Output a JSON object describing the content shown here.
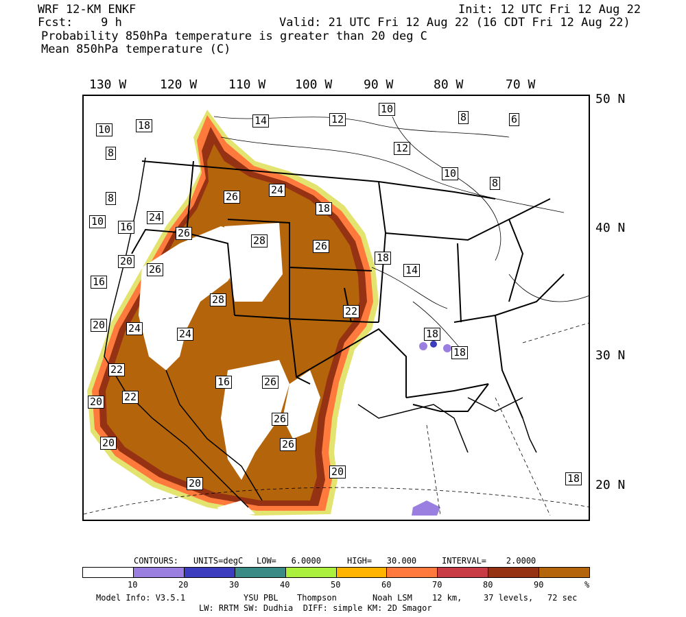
{
  "header": {
    "model": "WRF 12-KM ENKF",
    "init": "Init: 12 UTC Fri 12 Aug 22",
    "fcst": "Fcst:    9 h",
    "valid": "Valid: 21 UTC Fri 12 Aug 22 (16 CDT Fri 12 Aug 22)",
    "line3": "Probability 850hPa temperature is greater than 20 deg C",
    "line4": "Mean 850hPa temperature (C)"
  },
  "longitudes": [
    "130 W",
    "120 W",
    "110 W",
    "100 W",
    "90 W",
    "80 W",
    "70 W"
  ],
  "latitudes": [
    "50 N",
    "40 N",
    "30 N",
    "20 N"
  ],
  "contour_labels": [
    "10",
    "18",
    "8",
    "14",
    "12",
    "10",
    "8",
    "6",
    "12",
    "10",
    "8",
    "26",
    "24",
    "18",
    "8",
    "24",
    "10",
    "16",
    "26",
    "28",
    "26",
    "18",
    "14",
    "20",
    "26",
    "16",
    "28",
    "22",
    "20",
    "24",
    "24",
    "18",
    "18",
    "22",
    "16",
    "26",
    "22",
    "20",
    "26",
    "20",
    "26",
    "20",
    "20",
    "18"
  ],
  "contours_info": {
    "contours": "CONTOURS:",
    "units": "UNITS=degC",
    "low": "LOW=   6.0000",
    "high": "HIGH=   30.000",
    "interval": "INTERVAL=    2.0000"
  },
  "colorbar": {
    "colors": [
      "#ffffff",
      "#9a7fe0",
      "#3c3cbe",
      "#3a8a86",
      "#aaf03c",
      "#ffb400",
      "#ff7a3c",
      "#c83c46",
      "#963214",
      "#b4640a"
    ],
    "ticks": [
      "10",
      "20",
      "30",
      "40",
      "50",
      "60",
      "70",
      "80",
      "90",
      "%"
    ]
  },
  "model_info": {
    "line1a": "Model Info: V3.5.1",
    "line1b": "YSU PBL",
    "line1c": "Thompson",
    "line1d": "Noah LSM",
    "line1e": "12 km,",
    "line1f": "37 levels,",
    "line1g": "72 sec",
    "line2": "LW: RRTM SW: Dudhia  DIFF: simple KM: 2D Smagor"
  }
}
